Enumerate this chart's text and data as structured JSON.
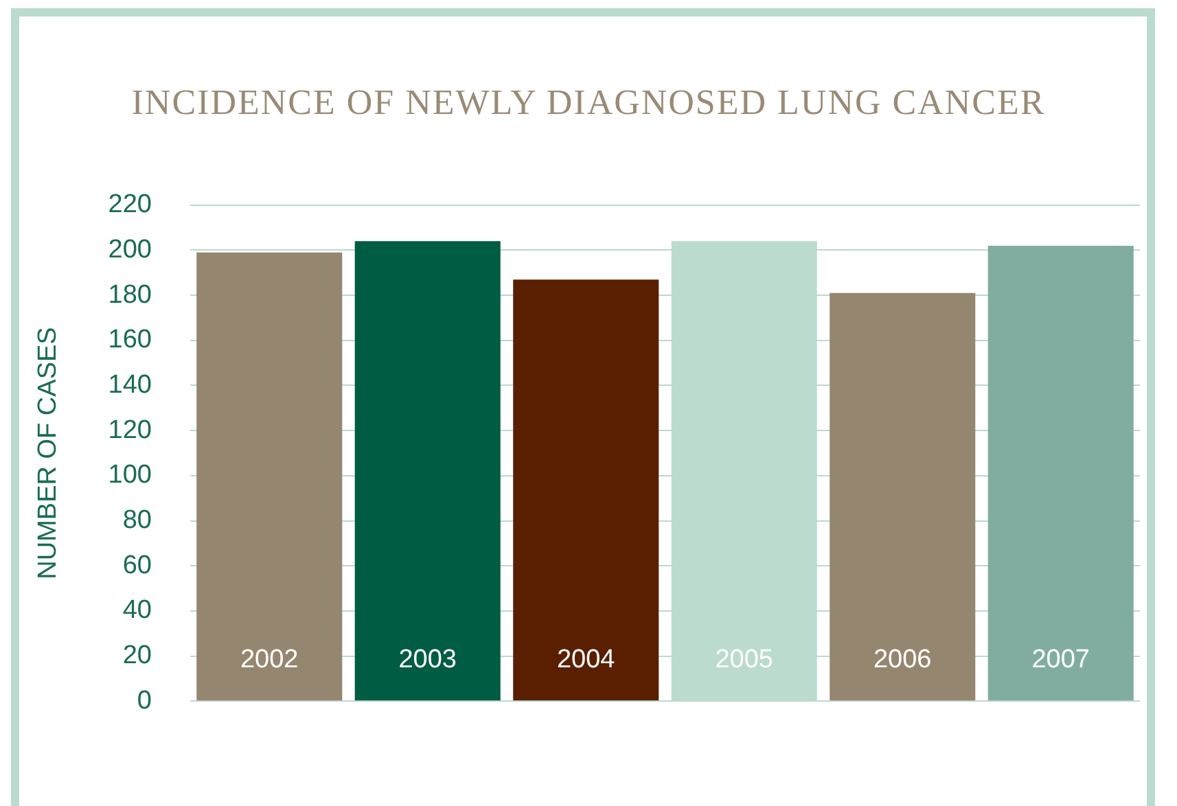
{
  "chart_data": {
    "type": "bar",
    "title": "INCIDENCE OF NEWLY DIAGNOSED LUNG CANCER",
    "ylabel": "NUMBER OF CASES",
    "categories": [
      "2002",
      "2003",
      "2004",
      "2005",
      "2006",
      "2007"
    ],
    "values": [
      199,
      204,
      187,
      204,
      181,
      202
    ],
    "colors": [
      "#958670",
      "#005c42",
      "#5a1f00",
      "#badbcd",
      "#958670",
      "#80ad9f"
    ],
    "ylim": [
      0,
      220
    ],
    "yticks": [
      0,
      20,
      40,
      60,
      80,
      100,
      120,
      140,
      160,
      180,
      200,
      220
    ],
    "grid": "y"
  }
}
